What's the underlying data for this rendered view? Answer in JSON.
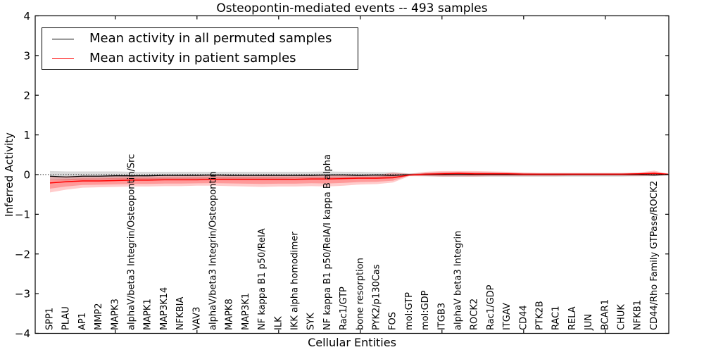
{
  "chart_data": {
    "type": "line",
    "title": "Osteopontin-mediated events -- 493 samples",
    "xlabel": "Cellular Entities",
    "ylabel": "Inferred Activity",
    "ylim": [
      -4,
      4
    ],
    "yticks": [
      4,
      3,
      2,
      1,
      0,
      -1,
      -2,
      -3,
      -4
    ],
    "ytick_labels": [
      "4",
      "3",
      "2",
      "1",
      "0",
      "−1",
      "−2",
      "−3",
      "−4"
    ],
    "xtick_indices": [
      4,
      9,
      14,
      19,
      24,
      29,
      34
    ],
    "grid": false,
    "legend_position": "upper-left",
    "zero_line_style": "dotted",
    "categories": [
      "SPP1",
      "PLAU",
      "AP1",
      "MMP2",
      "MAPK3",
      "alphaV/beta3 Integrin/Osteopontin/Src",
      "MAPK1",
      "MAP3K14",
      "NFKBIA",
      "VAV3",
      "alphaV/beta3 Integrin/Osteopontin",
      "MAPK8",
      "MAP3K1",
      "NF kappa B1 p50/RelA",
      "ILK",
      "IKK alpha homodimer",
      "SYK",
      "NF kappa B1 p50/RelA/I kappa B alpha",
      "Rac1/GTP",
      "bone resorption",
      "PYK2/p130Cas",
      "FOS",
      "mol:GTP",
      "mol:GDP",
      "ITGB3",
      "alphaV beta3 Integrin",
      "ROCK2",
      "Rac1/GDP",
      "ITGAV",
      "CD44",
      "PTK2B",
      "RAC1",
      "RELA",
      "JUN",
      "BCAR1",
      "CHUK",
      "NFKB1",
      "CD44/Rho Family GTPase/ROCK2"
    ],
    "series": [
      {
        "name": "Mean activity in all permuted samples",
        "color": "#000000",
        "values": [
          -0.04,
          -0.06,
          -0.04,
          -0.04,
          -0.03,
          -0.03,
          -0.03,
          -0.02,
          -0.02,
          -0.02,
          -0.01,
          -0.02,
          -0.02,
          -0.02,
          -0.02,
          -0.02,
          -0.02,
          -0.01,
          -0.01,
          -0.02,
          -0.01,
          -0.02,
          0,
          0,
          0,
          0,
          0,
          0,
          0,
          0,
          0,
          0,
          0,
          0,
          0,
          0,
          0,
          -0.01
        ]
      },
      {
        "name": "Mean activity in patient samples",
        "color": "#ff0000",
        "values": [
          -0.21,
          -0.18,
          -0.16,
          -0.16,
          -0.15,
          -0.14,
          -0.14,
          -0.13,
          -0.13,
          -0.13,
          -0.12,
          -0.12,
          -0.12,
          -0.12,
          -0.12,
          -0.12,
          -0.11,
          -0.11,
          -0.1,
          -0.09,
          -0.09,
          -0.08,
          -0.01,
          0.01,
          0.02,
          0.03,
          0.02,
          0.02,
          0.02,
          0.01,
          0.01,
          0.01,
          0.01,
          0.01,
          0.01,
          0.01,
          0.02,
          0.03
        ]
      }
    ],
    "bands": [
      {
        "name": "permuted-samples-band",
        "color": "#808080",
        "opacity": 0.3,
        "upper": [
          0.09,
          0.08,
          0.08,
          0.08,
          0.08,
          0.07,
          0.07,
          0.07,
          0.07,
          0.07,
          0.07,
          0.07,
          0.07,
          0.07,
          0.07,
          0.07,
          0.07,
          0.08,
          0.07,
          0.07,
          0.06,
          0.06,
          0.03,
          0.04,
          0.05,
          0.05,
          0.05,
          0.05,
          0.04,
          0.04,
          0.04,
          0.04,
          0.04,
          0.04,
          0.04,
          0.04,
          0.04,
          0.04
        ],
        "lower": [
          -0.14,
          -0.15,
          -0.13,
          -0.13,
          -0.12,
          -0.12,
          -0.12,
          -0.11,
          -0.11,
          -0.11,
          -0.1,
          -0.11,
          -0.11,
          -0.11,
          -0.11,
          -0.1,
          -0.1,
          -0.1,
          -0.1,
          -0.1,
          -0.09,
          -0.09,
          -0.03,
          -0.04,
          -0.05,
          -0.05,
          -0.05,
          -0.05,
          -0.05,
          -0.05,
          -0.05,
          -0.05,
          -0.05,
          -0.05,
          -0.05,
          -0.05,
          -0.04,
          -0.04
        ]
      },
      {
        "name": "patient-samples-band",
        "color": "#ff0000",
        "opacity": 0.2,
        "upper": [
          -0.05,
          -0.04,
          -0.03,
          -0.03,
          -0.02,
          -0.02,
          -0.02,
          -0.02,
          -0.02,
          -0.01,
          -0.01,
          -0.01,
          -0.01,
          -0.01,
          -0.01,
          -0.01,
          -0.01,
          -0.01,
          -0.01,
          -0.02,
          -0.01,
          0.05,
          0.02,
          0.07,
          0.09,
          0.09,
          0.09,
          0.08,
          0.07,
          0.05,
          0.04,
          0.04,
          0.04,
          0.04,
          0.04,
          0.04,
          0.05,
          0.1
        ],
        "lower": [
          -0.45,
          -0.38,
          -0.33,
          -0.32,
          -0.31,
          -0.3,
          -0.3,
          -0.29,
          -0.29,
          -0.28,
          -0.28,
          -0.29,
          -0.3,
          -0.31,
          -0.3,
          -0.3,
          -0.29,
          -0.3,
          -0.28,
          -0.25,
          -0.24,
          -0.2,
          -0.04,
          -0.04,
          -0.05,
          -0.05,
          -0.05,
          -0.04,
          -0.04,
          -0.04,
          -0.04,
          -0.04,
          -0.03,
          -0.03,
          -0.03,
          -0.03,
          -0.04,
          -0.03
        ]
      }
    ],
    "legend": [
      {
        "label": "Mean activity in all permuted samples",
        "color": "#000000"
      },
      {
        "label": "Mean activity in patient samples",
        "color": "#ff0000"
      }
    ]
  }
}
